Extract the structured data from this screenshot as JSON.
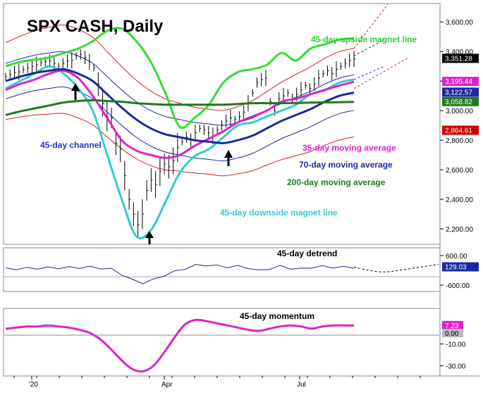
{
  "chart_data": [
    {
      "type": "line",
      "title": "SPX CASH, Daily",
      "xlabel": "",
      "ylabel": "",
      "x_ticks": [
        "'20",
        "Apr",
        "Jul"
      ],
      "y_ticks": [
        "3,600.00",
        "3,400.00",
        "3,200.00",
        "3,000.00",
        "2,800.00",
        "2,600.00",
        "2,400.00",
        "2,200.00"
      ],
      "ylim": [
        2100,
        3720
      ],
      "annotations": [
        {
          "text": "45-day upside magnet line",
          "color": "#33cc33"
        },
        {
          "text": "45-day channel",
          "color": "#2233cc"
        },
        {
          "text": "35-day moving average",
          "color": "#dd22cc"
        },
        {
          "text": "70-day moving average",
          "color": "#1a2aa0"
        },
        {
          "text": "200-day moving average",
          "color": "#1e7a1e"
        },
        {
          "text": "45-day downside magnet line",
          "color": "#33cccc"
        }
      ],
      "value_labels": [
        {
          "text": "3,351.28",
          "value": 3351.28,
          "bg": "#000000",
          "fg": "#ffffff"
        },
        {
          "text": "3,195.44",
          "value": 3195.44,
          "bg": "#dd22cc",
          "fg": "#ffffff"
        },
        {
          "text": "3,122.57",
          "value": 3122.57,
          "bg": "#1a2aa0",
          "fg": "#ffffff"
        },
        {
          "text": "3,058.82",
          "value": 3058.82,
          "bg": "#1e7a1e",
          "fg": "#ffffff"
        },
        {
          "text": "2,864.61",
          "value": 2864.61,
          "bg": "#cc0000",
          "fg": "#ffffff"
        }
      ],
      "price_bars": [
        3230,
        3245,
        3258,
        3262,
        3278,
        3290,
        3300,
        3310,
        3325,
        3330,
        3335,
        3320,
        3300,
        3320,
        3335,
        3340,
        3370,
        3380,
        3360,
        3330,
        3290,
        3180,
        3050,
        2960,
        2950,
        2780,
        2740,
        2560,
        2400,
        2300,
        2230,
        2300,
        2460,
        2530,
        2500,
        2590,
        2640,
        2620,
        2660,
        2750,
        2790,
        2820,
        2800,
        2850,
        2880,
        2870,
        2850,
        2830,
        2870,
        2900,
        2930,
        2950,
        2940,
        2960,
        2990,
        3050,
        3120,
        3190,
        3210,
        3220,
        3060,
        3000,
        3080,
        3100,
        3120,
        3080,
        3110,
        3140,
        3170,
        3150,
        3180,
        3220,
        3250,
        3270,
        3250,
        3280,
        3300,
        3320,
        3340,
        3350
      ],
      "series": [
        {
          "name": "45-day upside magnet line",
          "color": "#33dd33",
          "values": [
            3300,
            3330,
            3345,
            3360,
            3390,
            3420,
            3470,
            3540,
            3555,
            3470,
            3330,
            3120,
            2890,
            2950,
            3040,
            3190,
            3260,
            3280,
            3310,
            3390,
            3340,
            3420,
            3450,
            3480,
            3490
          ]
        },
        {
          "name": "45-day downside magnet line",
          "color": "#33cccc",
          "values": [
            3150,
            3200,
            3250,
            3300,
            3250,
            3150,
            3000,
            2700,
            2400,
            2150,
            2190,
            2380,
            2580,
            2690,
            2740,
            2820,
            2900,
            2920,
            2960,
            3000,
            3040,
            3110,
            3140,
            3190,
            3210
          ]
        },
        {
          "name": "35-day moving average",
          "color": "#dd22cc",
          "values": [
            3140,
            3180,
            3210,
            3250,
            3270,
            3220,
            3100,
            2950,
            2800,
            2730,
            2700,
            2680,
            2700,
            2760,
            2810,
            2860,
            2920,
            2960,
            3000,
            3060,
            3080,
            3110,
            3140,
            3170,
            3195
          ]
        },
        {
          "name": "70-day moving average",
          "color": "#1a2aa0",
          "values": [
            3200,
            3230,
            3255,
            3270,
            3280,
            3250,
            3200,
            3110,
            3020,
            2940,
            2880,
            2840,
            2820,
            2800,
            2790,
            2780,
            2800,
            2830,
            2880,
            2930,
            2970,
            3010,
            3060,
            3100,
            3122
          ]
        },
        {
          "name": "200-day moving average",
          "color": "#1e7a1e",
          "values": [
            2970,
            2995,
            3015,
            3035,
            3055,
            3065,
            3070,
            3065,
            3060,
            3050,
            3045,
            3040,
            3040,
            3040,
            3040,
            3040,
            3045,
            3050,
            3050,
            3050,
            3052,
            3054,
            3056,
            3057,
            3059
          ]
        }
      ]
    },
    {
      "type": "line",
      "title": "45-day detrend",
      "y_ticks": [
        "600.00",
        "-600.00"
      ],
      "ylim": [
        -800,
        800
      ],
      "value_label": {
        "text": "129.03",
        "value": 129.03,
        "bg": "#1a2aa0",
        "fg": "#ffffff"
      },
      "series": [
        {
          "name": "45-day detrend",
          "color": "#1a2aa0",
          "values": [
            60,
            70,
            80,
            90,
            100,
            105,
            110,
            120,
            125,
            100,
            40,
            -150,
            -400,
            -500,
            -390,
            -200,
            -60,
            80,
            200,
            220,
            180,
            150,
            160,
            110,
            -20,
            80,
            160,
            90,
            50,
            130,
            150,
            140,
            120,
            129
          ]
        }
      ]
    },
    {
      "type": "line",
      "title": "45-day momentum",
      "y_ticks": [
        "-10.00",
        "-30.00"
      ],
      "ylim": [
        -38,
        20
      ],
      "value_labels": [
        {
          "text": "7.23",
          "value": 7.23,
          "bg": "#dd22cc",
          "fg": "#ffffff"
        },
        {
          "text": "0.00",
          "value": 0,
          "bg": "#bbbbbb",
          "fg": "#000000"
        }
      ],
      "series": [
        {
          "name": "45-day momentum",
          "color": "#dd22cc",
          "values": [
            4,
            5,
            6,
            6,
            7,
            6,
            5,
            3,
            0,
            -6,
            -15,
            -25,
            -33,
            -35,
            -30,
            -18,
            -4,
            8,
            12,
            11,
            9,
            7,
            5,
            3,
            2,
            4,
            6,
            7,
            6,
            4,
            6,
            7,
            7,
            7
          ]
        }
      ]
    }
  ]
}
